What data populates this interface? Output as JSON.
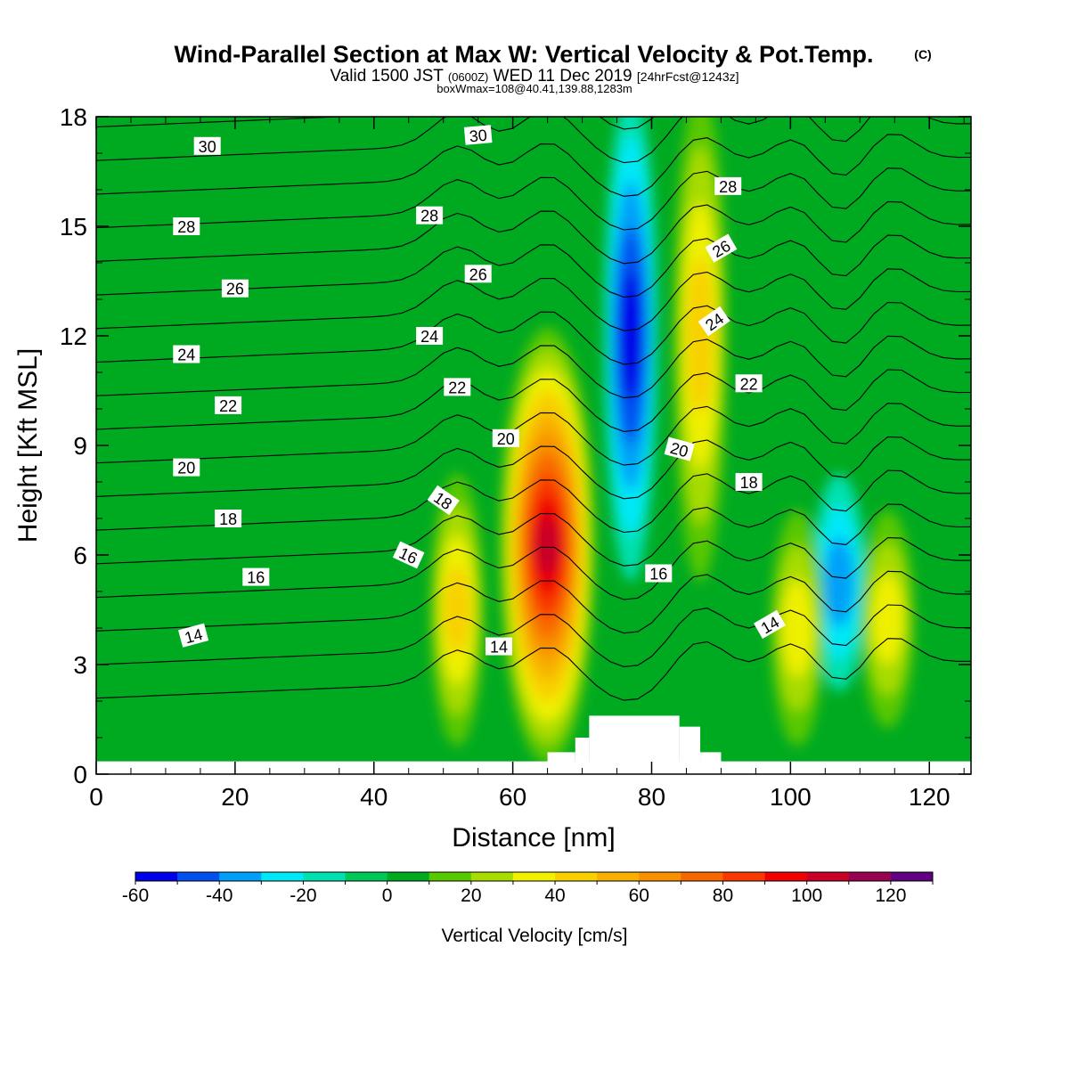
{
  "chart_data": {
    "type": "heatmap",
    "title": "Wind-Parallel Section at Max W: Vertical Velocity & Pot.Temp.",
    "title_mark": "(C)",
    "subtitle_valid": "Valid 1500 JST",
    "subtitle_utc": "(0600Z)",
    "subtitle_date": "WED 11 Dec 2019",
    "subtitle_fcst": "[24hrFcst@1243z]",
    "subtitle2": "boxWmax=108@40.41,139.88,1283m",
    "xlabel": "Distance [nm]",
    "ylabel": "Height [Kft MSL]",
    "xlim": [
      0,
      126
    ],
    "ylim": [
      0,
      18
    ],
    "xticks": [
      0,
      20,
      40,
      60,
      80,
      100,
      120
    ],
    "yticks": [
      0,
      3,
      6,
      9,
      12,
      15,
      18
    ],
    "colorbar": {
      "label": "Vertical Velocity [cm/s]",
      "levels": [
        -60,
        -50,
        -40,
        -30,
        -20,
        -10,
        0,
        10,
        20,
        30,
        40,
        50,
        60,
        70,
        80,
        90,
        100,
        110,
        120,
        130
      ],
      "tick_labels": [
        -60,
        -40,
        -20,
        0,
        20,
        40,
        60,
        80,
        100,
        120
      ],
      "colors": [
        "#0000e8",
        "#0050f0",
        "#00a0f8",
        "#00e8f8",
        "#00e0b0",
        "#00c858",
        "#00aa20",
        "#58c800",
        "#a8dc00",
        "#f0f000",
        "#f8d000",
        "#f8b000",
        "#f89000",
        "#f86800",
        "#f83800",
        "#f00000",
        "#c80028",
        "#980050",
        "#600080"
      ]
    },
    "background_level_color": "#00aa20",
    "updrafts": [
      {
        "x": 65,
        "z_range": [
          1,
          11.5
        ],
        "peak_w": 108
      },
      {
        "x": 52,
        "z_range": [
          1.5,
          7.5
        ],
        "peak_w": 40
      },
      {
        "x": 87,
        "z_range": [
          6,
          18
        ],
        "peak_w": 40
      },
      {
        "x": 101,
        "z_range": [
          1.5,
          6.5
        ],
        "peak_w": 30
      },
      {
        "x": 114,
        "z_range": [
          2,
          6.5
        ],
        "peak_w": 30
      }
    ],
    "downdrafts": [
      {
        "x": 77,
        "z_range": [
          6,
          18
        ],
        "peak_w": -50
      },
      {
        "x": 107,
        "z_range": [
          3,
          7.5
        ],
        "peak_w": -30
      }
    ],
    "terrain": [
      {
        "x0": 65,
        "x1": 69,
        "top": 0.6
      },
      {
        "x0": 69,
        "x1": 71,
        "top": 1.0
      },
      {
        "x0": 71,
        "x1": 84,
        "top": 1.6
      },
      {
        "x0": 84,
        "x1": 87,
        "top": 1.3
      },
      {
        "x0": 87,
        "x1": 90,
        "top": 0.6
      }
    ],
    "theta_labels": [
      {
        "x": 16,
        "z": 17.2,
        "text": "30",
        "rot": 0
      },
      {
        "x": 55,
        "z": 17.5,
        "text": "30",
        "rot": -5
      },
      {
        "x": 13,
        "z": 15.0,
        "text": "28",
        "rot": 0
      },
      {
        "x": 48,
        "z": 15.3,
        "text": "28",
        "rot": 0
      },
      {
        "x": 91,
        "z": 16.1,
        "text": "28",
        "rot": 0
      },
      {
        "x": 20,
        "z": 13.3,
        "text": "26",
        "rot": 0
      },
      {
        "x": 55,
        "z": 13.7,
        "text": "26",
        "rot": 0
      },
      {
        "x": 90,
        "z": 14.4,
        "text": "26",
        "rot": -30
      },
      {
        "x": 13,
        "z": 11.5,
        "text": "24",
        "rot": 0
      },
      {
        "x": 48,
        "z": 12.0,
        "text": "24",
        "rot": 0
      },
      {
        "x": 89,
        "z": 12.4,
        "text": "24",
        "rot": -35
      },
      {
        "x": 19,
        "z": 10.1,
        "text": "22",
        "rot": 0
      },
      {
        "x": 52,
        "z": 10.6,
        "text": "22",
        "rot": 0
      },
      {
        "x": 94,
        "z": 10.7,
        "text": "22",
        "rot": 0
      },
      {
        "x": 13,
        "z": 8.4,
        "text": "20",
        "rot": 0
      },
      {
        "x": 59,
        "z": 9.2,
        "text": "20",
        "rot": 0
      },
      {
        "x": 84,
        "z": 8.9,
        "text": "20",
        "rot": 15
      },
      {
        "x": 19,
        "z": 7.0,
        "text": "18",
        "rot": 0
      },
      {
        "x": 50,
        "z": 7.5,
        "text": "18",
        "rot": 35
      },
      {
        "x": 94,
        "z": 8.0,
        "text": "18",
        "rot": 0
      },
      {
        "x": 23,
        "z": 5.4,
        "text": "16",
        "rot": 0
      },
      {
        "x": 45,
        "z": 6.0,
        "text": "16",
        "rot": 25
      },
      {
        "x": 81,
        "z": 5.5,
        "text": "16",
        "rot": 0
      },
      {
        "x": 14,
        "z": 3.8,
        "text": "14",
        "rot": -15
      },
      {
        "x": 58,
        "z": 3.5,
        "text": "14",
        "rot": 0
      },
      {
        "x": 97,
        "z": 4.1,
        "text": "14",
        "rot": -30
      }
    ]
  }
}
